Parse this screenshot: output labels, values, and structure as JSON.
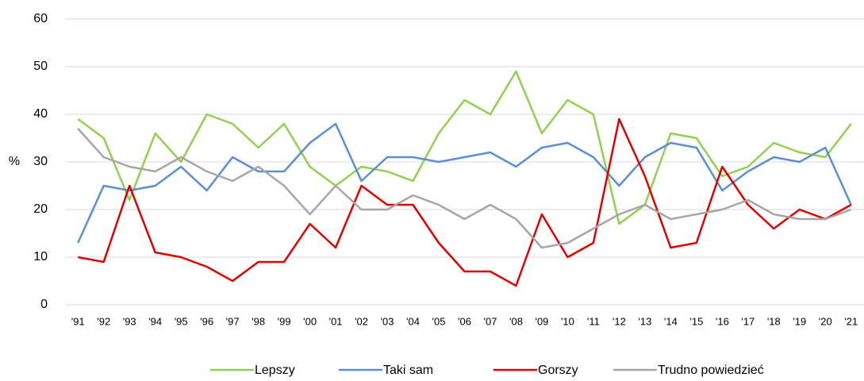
{
  "chart_data": {
    "type": "line",
    "y_label": "%",
    "categories": [
      "'91",
      "'92",
      "'93",
      "'94",
      "'95",
      "'96",
      "'97",
      "'98",
      "'99",
      "'00",
      "'01",
      "'02",
      "'03",
      "'04",
      "'05",
      "'06",
      "'07",
      "'08",
      "'09",
      "'10",
      "'11",
      "'12",
      "'13",
      "'14",
      "'15",
      "'16",
      "'17",
      "'18",
      "'19",
      "'20",
      "'21"
    ],
    "series": [
      {
        "name": "Lepszy",
        "color": "#92d050",
        "values": [
          39,
          35,
          22,
          36,
          30,
          40,
          38,
          33,
          38,
          29,
          25,
          29,
          28,
          26,
          36,
          43,
          40,
          49,
          36,
          43,
          40,
          17,
          21,
          36,
          35,
          27,
          29,
          34,
          32,
          31,
          38
        ]
      },
      {
        "name": "Taki sam",
        "color": "#5b8fd1",
        "values": [
          13,
          25,
          24,
          25,
          29,
          24,
          31,
          28,
          28,
          34,
          38,
          26,
          31,
          31,
          30,
          31,
          32,
          29,
          33,
          34,
          31,
          25,
          31,
          34,
          33,
          24,
          28,
          31,
          30,
          33,
          21
        ]
      },
      {
        "name": "Gorszy",
        "color": "#e00000",
        "values": [
          10,
          9,
          25,
          11,
          10,
          8,
          5,
          9,
          9,
          17,
          12,
          25,
          21,
          21,
          13,
          7,
          7,
          4,
          19,
          10,
          13,
          39,
          27,
          12,
          13,
          29,
          21,
          16,
          20,
          18,
          21
        ]
      },
      {
        "name": "Trudno powiedzieć",
        "color": "#a6a6a6",
        "values": [
          37,
          31,
          29,
          28,
          31,
          28,
          26,
          29,
          25,
          19,
          25,
          20,
          20,
          23,
          21,
          18,
          21,
          18,
          12,
          13,
          16,
          19,
          21,
          18,
          19,
          20,
          22,
          19,
          18,
          18,
          20
        ]
      }
    ],
    "ylim": [
      0,
      60
    ],
    "yticks": [
      0,
      10,
      20,
      30,
      40,
      50,
      60
    ],
    "grid": true,
    "legend": "bottom"
  }
}
